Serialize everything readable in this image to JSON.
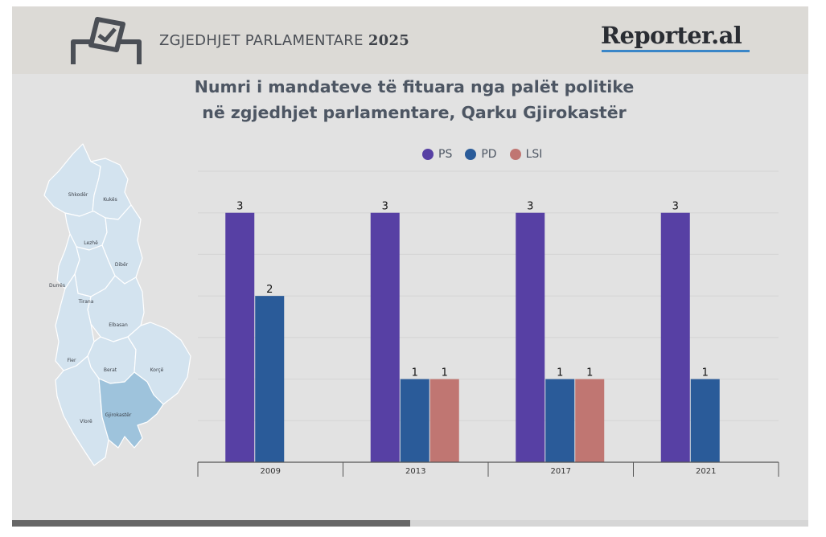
{
  "header": {
    "title_prefix": "ZGJEDHJET PARLAMENTARE",
    "title_year": "2025",
    "logo": "Reporter.al",
    "icon": "ballot-box-icon"
  },
  "chart_title": {
    "line1": "Numri i mandateve të fituara nga palët politike",
    "line2": "në zgjedhjet parlamentare, Qarku Gjirokastër"
  },
  "map": {
    "regions": [
      "Shkodër",
      "Kukës",
      "Lezhë",
      "Dibër",
      "Durrës",
      "Tirana",
      "Elbasan",
      "Fier",
      "Berat",
      "Korçë",
      "Vlorë",
      "Gjirokastër"
    ],
    "highlighted": "Gjirokastër",
    "base_color": "#d3e3ef",
    "highlight_color": "#9ec3dc"
  },
  "chart_data": {
    "type": "bar",
    "title": "Numri i mandateve të fituara nga palët politike në zgjedhjet parlamentare, Qarku Gjirokastër",
    "categories": [
      "2009",
      "2013",
      "2017",
      "2021"
    ],
    "series": [
      {
        "name": "PS",
        "color": "#5740a4",
        "values": [
          3,
          3,
          3,
          3
        ]
      },
      {
        "name": "PD",
        "color": "#2a5b99",
        "values": [
          2,
          1,
          1,
          1
        ]
      },
      {
        "name": "LSI",
        "color": "#c07672",
        "values": [
          null,
          1,
          1,
          null
        ]
      }
    ],
    "ylim": [
      0,
      3.5
    ],
    "grid": true,
    "legend_position": "top-center",
    "xlabel": "",
    "ylabel": ""
  },
  "progress": {
    "fraction": 0.5
  }
}
